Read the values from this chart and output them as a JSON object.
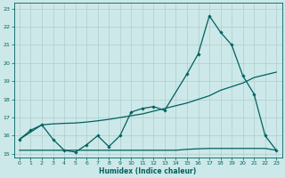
{
  "xlabel": "Humidex (Indice chaleur)",
  "bg_color": "#cce8e8",
  "grid_color": "#b8d8d8",
  "line_color": "#006060",
  "xlim": [
    -0.5,
    23.5
  ],
  "ylim": [
    14.8,
    23.3
  ],
  "yticks": [
    15,
    16,
    17,
    18,
    19,
    20,
    21,
    22,
    23
  ],
  "xticks": [
    0,
    1,
    2,
    3,
    4,
    5,
    6,
    7,
    8,
    9,
    10,
    11,
    12,
    13,
    14,
    15,
    16,
    17,
    18,
    19,
    20,
    21,
    22,
    23
  ],
  "line1_x": [
    0,
    1,
    2,
    3,
    4,
    5,
    6,
    7,
    8,
    9,
    10,
    11,
    12,
    13,
    15,
    16,
    17,
    18,
    19,
    20,
    21,
    22,
    23
  ],
  "line1_y": [
    15.8,
    16.3,
    16.6,
    15.8,
    15.2,
    15.1,
    15.5,
    16.0,
    15.4,
    16.0,
    17.3,
    17.5,
    17.6,
    17.4,
    19.4,
    20.5,
    22.6,
    21.7,
    21.0,
    19.3,
    18.3,
    16.0,
    15.2
  ],
  "line2_x": [
    0,
    1,
    2,
    3,
    4,
    5,
    6,
    7,
    8,
    9,
    10,
    11,
    12,
    13,
    14,
    15,
    16,
    17,
    18,
    19,
    20,
    21,
    22,
    23
  ],
  "line2_y": [
    15.8,
    16.2,
    16.6,
    16.65,
    16.68,
    16.7,
    16.75,
    16.82,
    16.9,
    17.0,
    17.1,
    17.2,
    17.35,
    17.5,
    17.65,
    17.8,
    18.0,
    18.2,
    18.5,
    18.7,
    18.9,
    19.2,
    19.35,
    19.5
  ],
  "line3_x": [
    0,
    1,
    2,
    3,
    4,
    5,
    6,
    7,
    8,
    9,
    10,
    11,
    12,
    13,
    14,
    15,
    16,
    17,
    18,
    19,
    20,
    21,
    22,
    23
  ],
  "line3_y": [
    15.2,
    15.2,
    15.2,
    15.2,
    15.2,
    15.2,
    15.2,
    15.2,
    15.2,
    15.2,
    15.2,
    15.2,
    15.2,
    15.2,
    15.2,
    15.25,
    15.28,
    15.3,
    15.3,
    15.3,
    15.3,
    15.3,
    15.3,
    15.2
  ]
}
